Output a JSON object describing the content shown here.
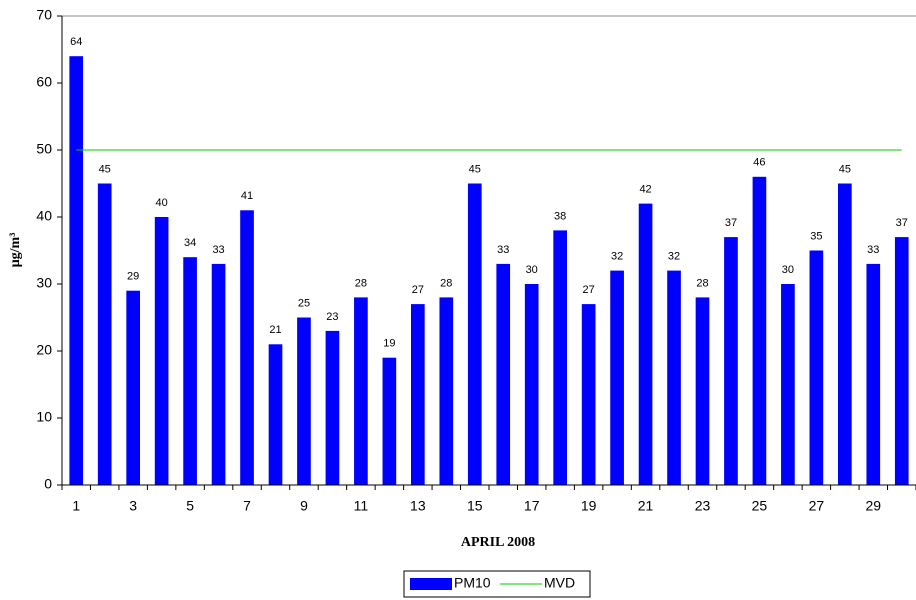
{
  "chart_data": {
    "type": "bar",
    "x_label": "APRIL 2008",
    "y_label": "µg/m³",
    "categories": [
      "1",
      null,
      "3",
      null,
      "5",
      null,
      "7",
      null,
      "9",
      null,
      "11",
      null,
      "13",
      null,
      "15",
      null,
      "17",
      null,
      "19",
      null,
      "21",
      null,
      "23",
      null,
      "25",
      null,
      "27",
      null,
      "29",
      null
    ],
    "series": [
      {
        "name": "PM10",
        "type": "bar",
        "color": "#0000ff",
        "values": [
          64,
          45,
          29,
          40,
          34,
          33,
          41,
          21,
          25,
          23,
          28,
          19,
          27,
          28,
          45,
          33,
          30,
          38,
          27,
          32,
          42,
          32,
          28,
          37,
          46,
          30,
          35,
          45,
          33,
          37
        ]
      },
      {
        "name": "MVD",
        "type": "line",
        "color": "#00cc00",
        "values": [
          50,
          50,
          50,
          50,
          50,
          50,
          50,
          50,
          50,
          50,
          50,
          50,
          50,
          50,
          50,
          50,
          50,
          50,
          50,
          50,
          50,
          50,
          50,
          50,
          50,
          50,
          50,
          50,
          50,
          50
        ]
      }
    ],
    "ylim": [
      0,
      70
    ],
    "yticks": [
      0,
      10,
      20,
      30,
      40,
      50,
      60,
      70
    ],
    "legend": "bottom"
  }
}
